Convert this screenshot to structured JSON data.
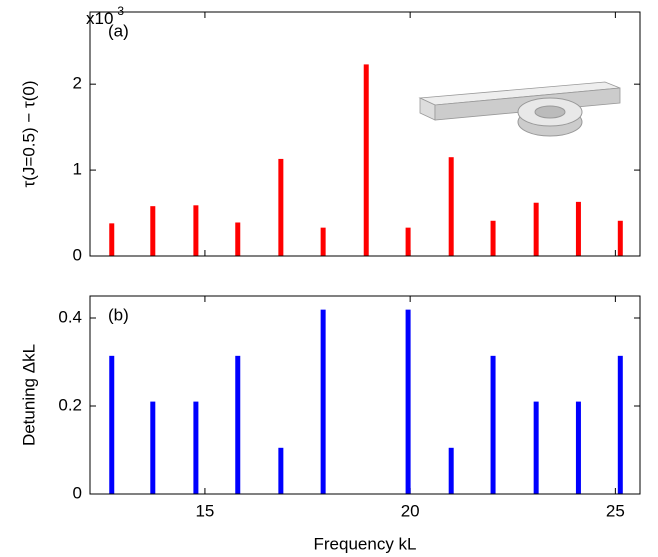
{
  "chart_data": [
    {
      "type": "bar",
      "panel_label": "(a)",
      "y_label": "τ(J=0.5) − τ(0)",
      "y_multiplier": {
        "base": "x10",
        "exponent": "-3"
      },
      "x": [
        12.73,
        13.73,
        14.78,
        15.8,
        16.85,
        17.88,
        18.93,
        19.95,
        21.0,
        22.02,
        23.07,
        24.1,
        25.12
      ],
      "values": [
        0.38,
        0.58,
        0.59,
        0.39,
        1.13,
        0.33,
        2.23,
        0.33,
        1.15,
        0.41,
        0.62,
        0.63,
        0.41
      ],
      "color": "#ff0000",
      "xlim": [
        12.2,
        25.6
      ],
      "xticks": [
        15,
        20,
        25
      ],
      "ylim": [
        0,
        2.84
      ],
      "yticks": [
        0,
        1,
        2
      ],
      "grid": false
    },
    {
      "type": "bar",
      "panel_label": "(b)",
      "y_label": "Detuning  ΔkL",
      "x_label": "Frequency kL",
      "x": [
        12.73,
        13.73,
        14.78,
        15.8,
        16.85,
        17.88,
        18.93,
        19.95,
        21.0,
        22.02,
        23.07,
        24.1,
        25.12
      ],
      "values": [
        0.314,
        0.21,
        0.21,
        0.314,
        0.105,
        0.419,
        0,
        0.419,
        0.105,
        0.314,
        0.21,
        0.21,
        0.314
      ],
      "color": "#0000ff",
      "xlim": [
        12.2,
        25.6
      ],
      "xticks": [
        15,
        20,
        25
      ],
      "ylim": [
        0,
        0.45
      ],
      "yticks": [
        0,
        0.2,
        0.4
      ],
      "grid": false
    }
  ]
}
